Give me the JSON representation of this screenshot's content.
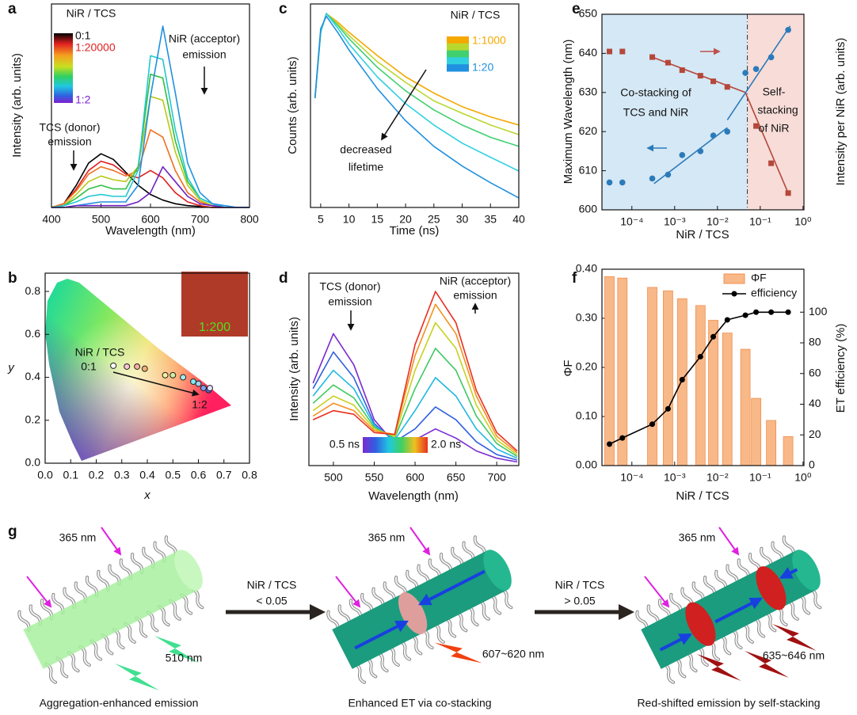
{
  "chart_data": [
    {
      "panel_label": "a",
      "type": "line",
      "x_label": "Wavelength (nm)",
      "y_label": "Intensity (arb. units)",
      "xlim": [
        400,
        800
      ],
      "ylim": [
        0,
        1.1
      ],
      "xticks": [
        400,
        500,
        600,
        700,
        800
      ],
      "x": [
        400,
        425,
        450,
        475,
        500,
        525,
        550,
        575,
        600,
        625,
        650,
        675,
        700,
        725,
        750,
        775,
        800
      ],
      "series": [
        {
          "color": "#000000",
          "values": [
            0,
            0.02,
            0.12,
            0.24,
            0.29,
            0.26,
            0.19,
            0.12,
            0.07,
            0.04,
            0.02,
            0.01,
            0.005,
            0,
            0,
            0,
            0
          ]
        },
        {
          "color": "#e02020",
          "values": [
            0,
            0.02,
            0.1,
            0.2,
            0.25,
            0.23,
            0.18,
            0.16,
            0.2,
            0.16,
            0.08,
            0.03,
            0.01,
            0,
            0,
            0,
            0
          ]
        },
        {
          "color": "#f07020",
          "values": [
            0,
            0.02,
            0.09,
            0.18,
            0.22,
            0.2,
            0.17,
            0.2,
            0.42,
            0.38,
            0.2,
            0.08,
            0.03,
            0.01,
            0,
            0,
            0
          ]
        },
        {
          "color": "#b8c818",
          "values": [
            0,
            0.01,
            0.07,
            0.14,
            0.17,
            0.15,
            0.14,
            0.22,
            0.6,
            0.58,
            0.3,
            0.12,
            0.04,
            0.01,
            0,
            0,
            0
          ]
        },
        {
          "color": "#30c040",
          "values": [
            0,
            0.01,
            0.05,
            0.1,
            0.12,
            0.1,
            0.1,
            0.22,
            0.72,
            0.7,
            0.36,
            0.14,
            0.05,
            0.02,
            0,
            0,
            0
          ]
        },
        {
          "color": "#20c8d0",
          "values": [
            0,
            0.01,
            0.03,
            0.06,
            0.07,
            0.06,
            0.06,
            0.2,
            0.82,
            0.8,
            0.42,
            0.16,
            0.05,
            0.02,
            0,
            0,
            0
          ]
        },
        {
          "color": "#2090e0",
          "values": [
            0,
            0,
            0.01,
            0.02,
            0.03,
            0.03,
            0.03,
            0.12,
            0.6,
            0.98,
            0.62,
            0.24,
            0.08,
            0.02,
            0.01,
            0,
            0
          ]
        },
        {
          "color": "#7020c0",
          "values": [
            0,
            0,
            0.01,
            0.01,
            0.01,
            0.01,
            0.01,
            0.03,
            0.08,
            0.22,
            0.14,
            0.06,
            0.02,
            0.01,
            0,
            0,
            0
          ]
        }
      ],
      "legend_title": "NiR / TCS",
      "colorbar_labels": [
        "0:1",
        "1:20000",
        "1:2"
      ],
      "annotations": [
        "NiR (acceptor)",
        "emission",
        "TCS (donor)",
        "emission"
      ]
    },
    {
      "panel_label": "b",
      "type": "scatter",
      "x_label": "x",
      "y_label": "y",
      "xlim": [
        0,
        0.8
      ],
      "ylim": [
        0,
        0.885
      ],
      "xticks": [
        {
          "value": 0,
          "label": "0.0"
        },
        0.1,
        0.2,
        0.3,
        0.4,
        0.5,
        0.6,
        0.7,
        0.8
      ],
      "yticks": [
        {
          "value": 0,
          "label": "0.0"
        },
        0.2,
        0.4,
        0.6,
        0.8
      ],
      "x": [
        0.267,
        0.32,
        0.36,
        0.39,
        0.47,
        0.5,
        0.54,
        0.58,
        0.6,
        0.62,
        0.64,
        0.645
      ],
      "series": [
        {
          "color": "#ffffff",
          "values": [
            0.454,
            0.45,
            0.45,
            0.44,
            0.41,
            0.41,
            0.4,
            0.38,
            0.37,
            0.35,
            0.34,
            0.35
          ],
          "point_colors": [
            "#ffffff",
            "#f8c8d0",
            "#f8b0a0",
            "#f0b070",
            "#f8f0a0",
            "#d0f0a0",
            "#a0f0f0",
            "#80e8f0",
            "#a0d0f8",
            "#80a0f0",
            "#6060e0",
            "#e0e0ff"
          ]
        }
      ],
      "annotations": [
        "NiR / TCS",
        "0:1",
        "1:2",
        "1:200"
      ]
    },
    {
      "panel_label": "c",
      "type": "line",
      "yscale": "log",
      "x_label": "Time (ns)",
      "y_label": "Counts (arb. units)",
      "xlim": [
        3.2,
        40
      ],
      "ylim": [
        0.025,
        1.2
      ],
      "xticks": [
        5,
        10,
        15,
        20,
        25,
        30,
        35,
        40
      ],
      "x": [
        4,
        5,
        6,
        8,
        10,
        15,
        20,
        25,
        30,
        35,
        40
      ],
      "series": [
        {
          "color": "#f5a800",
          "values": [
            0.2,
            0.7,
            1,
            0.85,
            0.7,
            0.45,
            0.3,
            0.22,
            0.17,
            0.14,
            0.12
          ]
        },
        {
          "color": "#b8d830",
          "values": [
            0.2,
            0.7,
            1,
            0.82,
            0.66,
            0.4,
            0.27,
            0.19,
            0.15,
            0.12,
            0.1
          ]
        },
        {
          "color": "#40d070",
          "values": [
            0.2,
            0.7,
            1,
            0.8,
            0.62,
            0.36,
            0.23,
            0.16,
            0.12,
            0.095,
            0.08
          ]
        },
        {
          "color": "#30d0e0",
          "values": [
            0.2,
            0.7,
            1,
            0.76,
            0.56,
            0.3,
            0.18,
            0.12,
            0.085,
            0.065,
            0.05
          ]
        },
        {
          "color": "#2090e0",
          "values": [
            0.2,
            0.75,
            0.95,
            0.7,
            0.5,
            0.24,
            0.13,
            0.08,
            0.055,
            0.04,
            0.03
          ]
        }
      ],
      "legend_title": "NiR / TCS",
      "legend_labels": [
        "1:1000",
        "1:20"
      ],
      "annotations": [
        "decreased",
        "lifetime"
      ]
    },
    {
      "panel_label": "d",
      "type": "line",
      "x_label": "Wavelength (nm)",
      "y_label": "Intensity (arb. units)",
      "xlim": [
        470,
        727
      ],
      "ylim": [
        0,
        1.05
      ],
      "xticks": [
        500,
        550,
        600,
        650,
        700
      ],
      "x": [
        475,
        500,
        525,
        550,
        575,
        600,
        625,
        650,
        675,
        700,
        725
      ],
      "series": [
        {
          "color": "#7a2ad0",
          "values": [
            0.45,
            0.72,
            0.55,
            0.25,
            0.12,
            0.14,
            0.2,
            0.15,
            0.08,
            0.04,
            0.02
          ]
        },
        {
          "color": "#3060e0",
          "values": [
            0.42,
            0.62,
            0.48,
            0.23,
            0.13,
            0.2,
            0.32,
            0.25,
            0.13,
            0.06,
            0.03
          ]
        },
        {
          "color": "#20b8e0",
          "values": [
            0.38,
            0.52,
            0.42,
            0.22,
            0.14,
            0.3,
            0.48,
            0.38,
            0.2,
            0.09,
            0.04
          ]
        },
        {
          "color": "#40c860",
          "values": [
            0.34,
            0.44,
            0.37,
            0.21,
            0.15,
            0.42,
            0.64,
            0.52,
            0.27,
            0.12,
            0.05
          ]
        },
        {
          "color": "#c8d020",
          "values": [
            0.3,
            0.38,
            0.33,
            0.2,
            0.16,
            0.52,
            0.78,
            0.64,
            0.33,
            0.14,
            0.06
          ]
        },
        {
          "color": "#f59020",
          "values": [
            0.27,
            0.34,
            0.3,
            0.19,
            0.17,
            0.6,
            0.88,
            0.72,
            0.38,
            0.16,
            0.07
          ]
        },
        {
          "color": "#e83020",
          "values": [
            0.25,
            0.3,
            0.28,
            0.18,
            0.17,
            0.66,
            0.95,
            0.78,
            0.41,
            0.18,
            0.08
          ]
        }
      ],
      "colorbar_labels": [
        "0.5 ns",
        "2.0 ns"
      ],
      "annotations": [
        "TCS (donor)",
        "emission",
        "NiR (acceptor)",
        "emission"
      ]
    },
    {
      "panel_label": "e",
      "type": "scatter",
      "xscale": "log",
      "x_label": "NiR / TCS",
      "y_label": "Maximum Wavelength (nm)",
      "y2_label": "Intensity per NiR (arb. units)",
      "xlim": [
        2e-05,
        1.05
      ],
      "ylim": [
        600,
        650
      ],
      "y2lim": [
        -0.05,
        1
      ],
      "xticks": [
        {
          "value": 0.0001,
          "label": "10⁻⁴"
        },
        {
          "value": 0.001,
          "label": "10⁻³"
        },
        {
          "value": 0.01,
          "label": "10⁻²"
        },
        {
          "value": 0.1,
          "label": "10⁻¹"
        },
        {
          "value": 1,
          "label": "10⁰"
        }
      ],
      "yticks": [
        600,
        610,
        620,
        630,
        640,
        650
      ],
      "x": [
        3e-05,
        6e-05,
        0.0003,
        0.0007,
        0.0015,
        0.004,
        0.008,
        0.017,
        0.045,
        0.08,
        0.18,
        0.45
      ],
      "series": [
        {
          "marker": "circle",
          "color": "#2b7bba",
          "values": [
            607,
            607,
            608,
            609,
            614,
            615,
            619,
            620,
            635,
            636,
            639,
            646
          ]
        },
        {
          "marker": "square",
          "color": "#b5473a",
          "axis": "y2",
          "values": [
            0.8,
            0.8,
            0.77,
            0.74,
            0.7,
            0.67,
            0.64,
            0.61,
            null,
            0.4,
            0.2,
            0.04
          ]
        }
      ],
      "vline": 0.05,
      "fits": [
        {
          "color": "#b5473a",
          "axis": "y2",
          "x": [
            0.0003,
            0.045
          ],
          "values": [
            0.77,
            0.58
          ]
        },
        {
          "color": "#b5473a",
          "axis": "y2",
          "x": [
            0.045,
            0.45
          ],
          "values": [
            0.58,
            0.04
          ]
        },
        {
          "color": "#2b7bba",
          "x": [
            0.00033,
            0.017
          ],
          "values": [
            606.7,
            621
          ]
        },
        {
          "color": "#2b7bba",
          "x": [
            0.017,
            0.5
          ],
          "values": [
            623,
            647
          ]
        }
      ],
      "annotations": [
        "Co-stacking of",
        "TCS and NiR",
        "Self-",
        "stacking",
        "of NiR"
      ]
    },
    {
      "panel_label": "f",
      "type": "bar",
      "xscale": "log",
      "x_label": "NiR / TCS",
      "y_label": "ΦF",
      "y2_label": "ET efficiency (%)",
      "xlim": [
        2e-05,
        1.05
      ],
      "ylim": [
        0,
        0.4
      ],
      "y2lim": [
        0,
        128
      ],
      "xticks": [
        {
          "value": 0.0001,
          "label": "10⁻⁴"
        },
        {
          "value": 0.001,
          "label": "10⁻³"
        },
        {
          "value": 0.01,
          "label": "10⁻²"
        },
        {
          "value": 0.1,
          "label": "10⁻¹"
        },
        {
          "value": 1,
          "label": "10⁰"
        }
      ],
      "yticks": [
        {
          "value": 0,
          "label": "0.00"
        },
        {
          "value": 0.1,
          "label": "0.10"
        },
        {
          "value": 0.2,
          "label": "0.20"
        },
        {
          "value": 0.3,
          "label": "0.30"
        },
        {
          "value": 0.4,
          "label": "0.40"
        }
      ],
      "y2ticks": [
        0,
        20,
        40,
        60,
        80,
        100
      ],
      "x": [
        3e-05,
        6e-05,
        0.0003,
        0.0007,
        0.0015,
        0.004,
        0.008,
        0.017,
        0.045,
        0.08,
        0.18,
        0.45
      ],
      "series": [
        {
          "name": "ΦF",
          "type": "bar",
          "color": "#f8b888",
          "values": [
            0.385,
            0.382,
            0.363,
            0.356,
            0.34,
            0.326,
            0.296,
            0.27,
            0.237,
            0.137,
            0.092,
            0.059
          ]
        },
        {
          "name": "efficiency",
          "type": "line",
          "axis": "y2",
          "markers": true,
          "color": "#000000",
          "values": [
            14,
            18,
            27,
            37,
            56,
            71,
            84,
            95,
            98,
            100,
            100,
            100
          ]
        }
      ]
    }
  ],
  "diagram": {
    "panel_label": "g",
    "steps": [
      {
        "excitation": "365 nm",
        "emission": "510 nm",
        "caption": "Aggregation-enhanced emission"
      },
      {
        "excitation": "365 nm",
        "emission": "607~620 nm",
        "caption": "Enhanced ET via co-stacking"
      },
      {
        "excitation": "365 nm",
        "emission": "635~646 nm",
        "caption": "Red-shifted emission by self-stacking"
      }
    ],
    "transitions": [
      {
        "label": "NiR / TCS",
        "condition": "< 0.05"
      },
      {
        "label": "NiR / TCS",
        "condition": "> 0.05"
      }
    ]
  }
}
